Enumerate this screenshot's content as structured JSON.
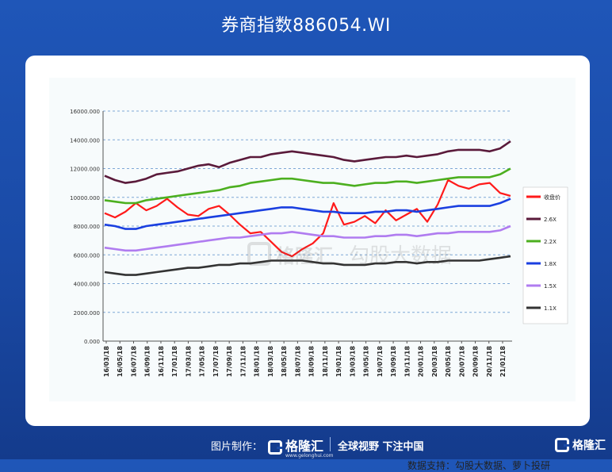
{
  "page": {
    "title": "券商指数886054.WI",
    "source_note": "数据支持：勾股大数据、萝卜投研",
    "watermark_brand": "格隆汇",
    "watermark_domain": "www.gelonghui.com",
    "watermark_partner": "勾股大数据",
    "footer_credit": "图片制作：",
    "footer_brand": "格隆汇",
    "footer_domain": "www.gelonghui.com",
    "footer_slogan": "全球视野 下注中国",
    "corner_brand": "格隆汇"
  },
  "colors": {
    "background": "#1a4aa6",
    "收盘价": "#ff1a1a",
    "2.6X": "#5a1a3a",
    "2.2X": "#4caf1f",
    "1.8X": "#1a3fe0",
    "1.5X": "#b07cf0",
    "1.1X": "#333333"
  },
  "chart_data": {
    "type": "line",
    "title": "",
    "xlabel": "",
    "ylabel": "",
    "ylim": [
      0,
      16000
    ],
    "y_ticks": [
      "0.000",
      "2000.000",
      "4000.000",
      "6000.000",
      "8000.000",
      "10000.000",
      "12000.000",
      "14000.000",
      "16000.000"
    ],
    "x_ticks": [
      "16/03/18",
      "16/05/18",
      "16/07/18",
      "16/09/18",
      "16/11/18",
      "17/01/18",
      "17/03/18",
      "17/05/18",
      "17/07/18",
      "17/09/18",
      "17/11/18",
      "18/01/18",
      "18/03/18",
      "18/05/18",
      "18/07/18",
      "18/09/18",
      "18/11/18",
      "19/01/18",
      "19/03/18",
      "19/05/18",
      "19/07/18",
      "19/09/18",
      "19/11/18",
      "20/01/18",
      "20/03/18",
      "20/05/18",
      "20/07/18",
      "20/09/18",
      "20/11/18",
      "21/01/18"
    ],
    "grid": "horizontal dashed",
    "legend_position": "right",
    "series": [
      {
        "name": "收盘价",
        "values": [
          8900,
          8600,
          9000,
          9600,
          9100,
          9400,
          9900,
          9300,
          8800,
          8700,
          9200,
          9400,
          8800,
          8100,
          7500,
          7600,
          6900,
          6200,
          5900,
          6400,
          6800,
          7500,
          9600,
          8100,
          8300,
          8700,
          8200,
          9100,
          8400,
          8800,
          9200,
          8300,
          9500,
          11200,
          10800,
          10600,
          10900,
          11000,
          10300,
          10100
        ]
      },
      {
        "name": "2.6X",
        "values": [
          11500,
          11200,
          11000,
          11100,
          11300,
          11600,
          11700,
          11800,
          12000,
          12200,
          12300,
          12100,
          12400,
          12600,
          12800,
          12800,
          13000,
          13100,
          13200,
          13100,
          13000,
          12900,
          12800,
          12600,
          12500,
          12600,
          12700,
          12800,
          12800,
          12900,
          12800,
          12900,
          13000,
          13200,
          13300,
          13300,
          13300,
          13200,
          13400,
          13900
        ]
      },
      {
        "name": "2.2X",
        "values": [
          9800,
          9700,
          9600,
          9600,
          9800,
          9900,
          10000,
          10100,
          10200,
          10300,
          10400,
          10500,
          10700,
          10800,
          11000,
          11100,
          11200,
          11300,
          11300,
          11200,
          11100,
          11000,
          11000,
          10900,
          10800,
          10900,
          11000,
          11000,
          11100,
          11100,
          11000,
          11100,
          11200,
          11300,
          11400,
          11400,
          11400,
          11400,
          11600,
          12000
        ]
      },
      {
        "name": "1.8X",
        "values": [
          8100,
          8000,
          7800,
          7800,
          8000,
          8100,
          8200,
          8300,
          8400,
          8500,
          8600,
          8700,
          8800,
          8900,
          9000,
          9100,
          9200,
          9300,
          9300,
          9200,
          9100,
          9000,
          9000,
          8900,
          8900,
          8900,
          9000,
          9000,
          9100,
          9100,
          9000,
          9100,
          9200,
          9300,
          9400,
          9400,
          9400,
          9400,
          9600,
          9900
        ]
      },
      {
        "name": "1.5X",
        "values": [
          6500,
          6400,
          6300,
          6300,
          6400,
          6500,
          6600,
          6700,
          6800,
          6900,
          7000,
          7100,
          7200,
          7200,
          7300,
          7400,
          7500,
          7500,
          7600,
          7500,
          7400,
          7300,
          7300,
          7200,
          7200,
          7200,
          7300,
          7300,
          7400,
          7400,
          7300,
          7400,
          7500,
          7500,
          7600,
          7600,
          7600,
          7600,
          7700,
          8000
        ]
      },
      {
        "name": "1.1X",
        "values": [
          4800,
          4700,
          4600,
          4600,
          4700,
          4800,
          4900,
          5000,
          5100,
          5100,
          5200,
          5300,
          5300,
          5400,
          5400,
          5500,
          5600,
          5600,
          5600,
          5600,
          5500,
          5400,
          5400,
          5300,
          5300,
          5300,
          5400,
          5400,
          5500,
          5500,
          5400,
          5500,
          5500,
          5600,
          5600,
          5600,
          5600,
          5700,
          5800,
          5900
        ]
      }
    ]
  }
}
